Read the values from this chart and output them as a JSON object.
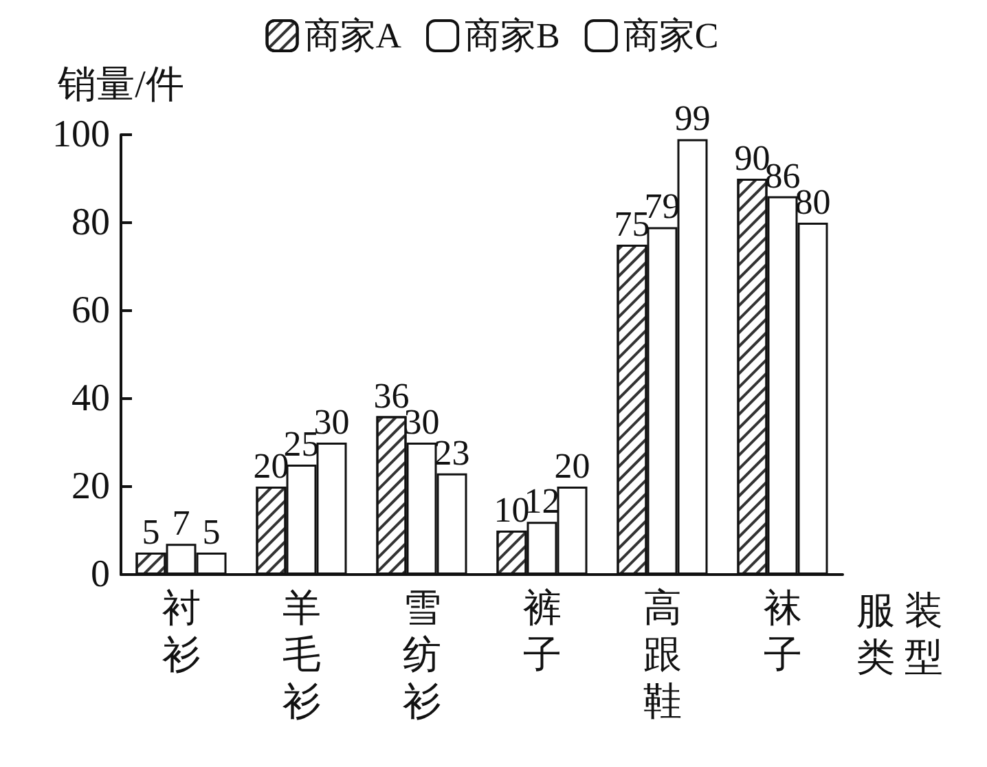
{
  "chart_data": {
    "type": "bar",
    "ylabel": "销量/件",
    "xlabel": "服装类型",
    "categories": [
      "衬衫",
      "羊毛衫",
      "雪纺衫",
      "裤子",
      "高跟鞋",
      "袜子"
    ],
    "series": [
      {
        "name": "商家A",
        "color": "#ffffff",
        "values": [
          5,
          20,
          36,
          10,
          75,
          90
        ]
      },
      {
        "name": "商家B",
        "color": "#ffffff",
        "values": [
          7,
          25,
          30,
          12,
          79,
          86
        ]
      },
      {
        "name": "商家C",
        "color": "#ffffff",
        "values": [
          5,
          30,
          23,
          20,
          99,
          80
        ]
      }
    ],
    "ylim": [
      0,
      100
    ],
    "yticks": [
      0,
      20,
      40,
      60,
      80,
      100
    ],
    "grid": false,
    "legend": "top",
    "data_labels": true
  }
}
